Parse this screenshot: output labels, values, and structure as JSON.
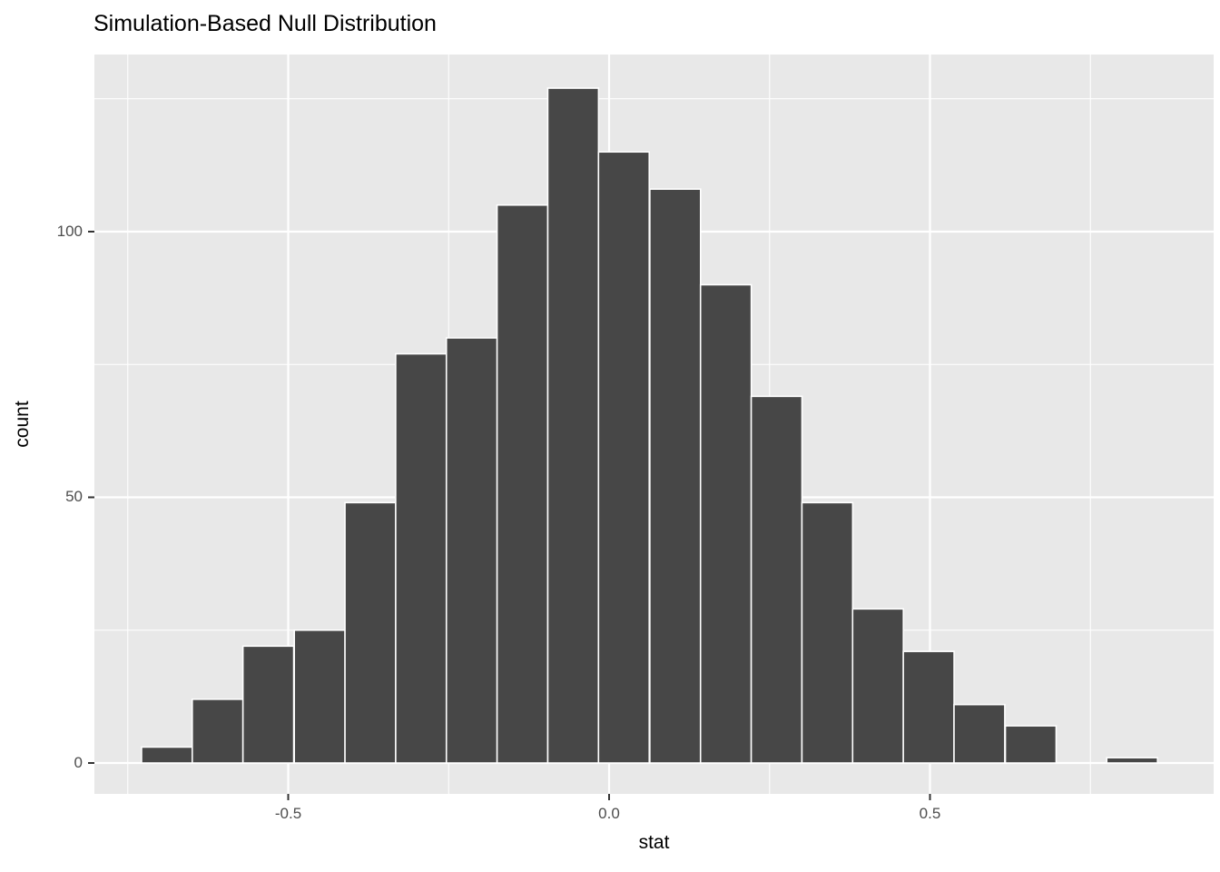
{
  "chart_data": {
    "type": "bar",
    "subtype": "histogram",
    "title": "Simulation-Based Null Distribution",
    "xlabel": "stat",
    "ylabel": "count",
    "bin_width": 0.0791,
    "bin_centers": [
      -0.689,
      -0.61,
      -0.531,
      -0.451,
      -0.372,
      -0.293,
      -0.214,
      -0.135,
      -0.056,
      0.023,
      0.103,
      0.182,
      0.261,
      0.34,
      0.419,
      0.498,
      0.577,
      0.657,
      0.736,
      0.815
    ],
    "counts": [
      3,
      12,
      22,
      25,
      49,
      77,
      80,
      105,
      127,
      115,
      108,
      90,
      69,
      49,
      29,
      21,
      11,
      7,
      0,
      1
    ],
    "x_ticks": {
      "values": [
        -0.5,
        0.0,
        0.5
      ],
      "labels": [
        "-0.5",
        "0.0",
        "0.5"
      ],
      "minor": [
        -0.75,
        -0.25,
        0.25,
        0.75
      ]
    },
    "y_ticks": {
      "values": [
        0,
        50,
        100
      ],
      "labels": [
        "0",
        "50",
        "100"
      ],
      "minor": [
        25,
        75,
        125
      ]
    },
    "xlim": [
      -0.802,
      0.942
    ],
    "ylim": [
      -5.81,
      133.33
    ],
    "grid": true,
    "legend": "none",
    "colors": {
      "bar_fill": "#474747",
      "bar_stroke": "#ffffff",
      "panel_bg": "#e8e8e8",
      "gridline": "#ffffff",
      "tick_mark": "#333333",
      "tick_label": "#4d4d4d",
      "title_color": "#000000"
    }
  }
}
